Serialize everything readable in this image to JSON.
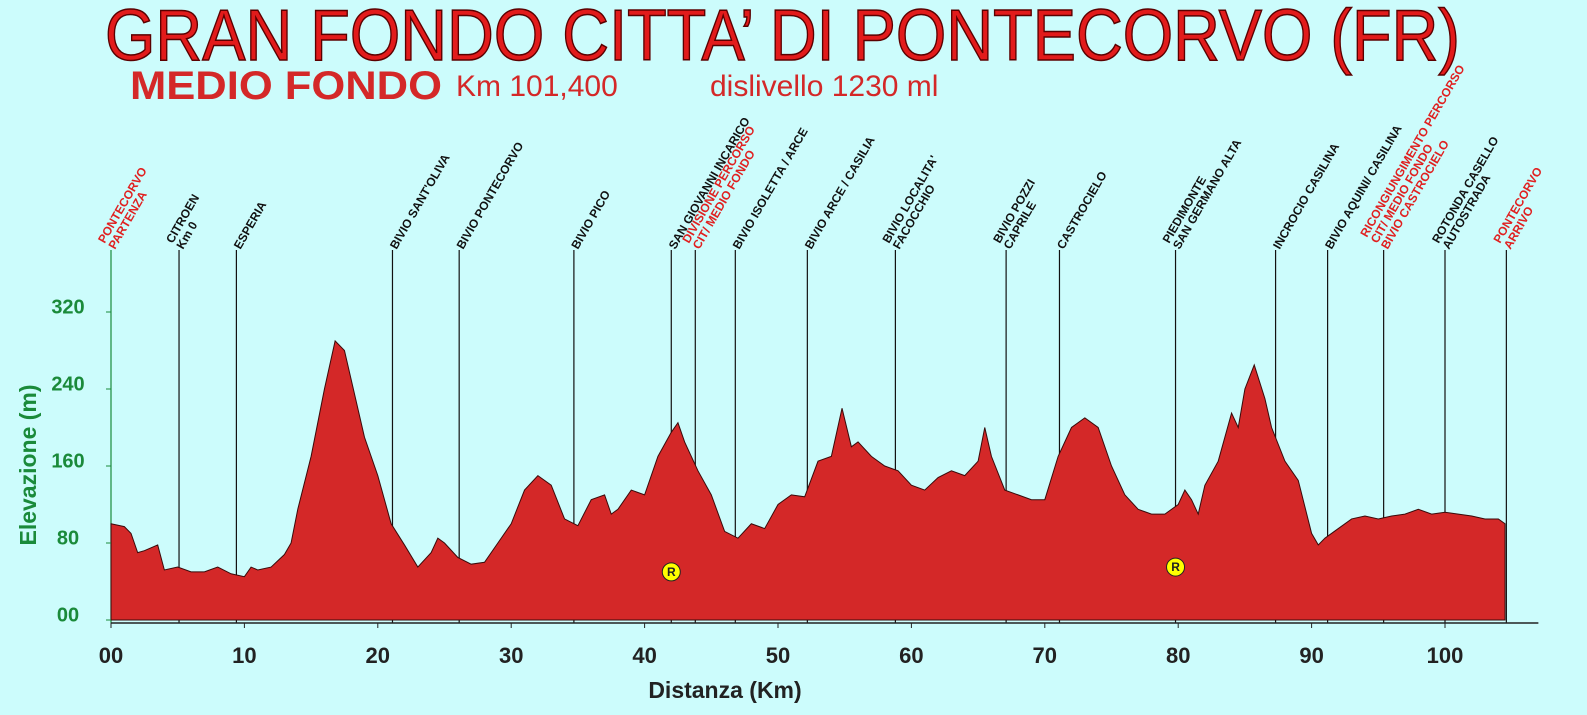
{
  "chart_data": {
    "type": "area",
    "title": "GRAN FONDO  CITTA’ DI PONTECORVO (FR)",
    "subtitle": "MEDIO FONDO",
    "distance_label": "Km 101,400",
    "climb_label": "dislivello 1230 ml",
    "x_label": "Distanza (Km)",
    "y_label": "Elevazione (m)",
    "color": "#d42828",
    "xlim": [
      0,
      107
    ],
    "ylim": [
      0,
      330
    ],
    "xticks": [
      {
        "value": 0,
        "label": "00"
      },
      10,
      20,
      30,
      40,
      50,
      60,
      70,
      80,
      90,
      100
    ],
    "yticks": [
      {
        "value": 0,
        "label": "00"
      },
      80,
      160,
      240,
      320
    ],
    "x": [
      0,
      1,
      1.5,
      2,
      2.5,
      3,
      3.5,
      4,
      5,
      6,
      7,
      8,
      9,
      10,
      10.5,
      11,
      12,
      13,
      13.5,
      14,
      15,
      16,
      16.8,
      17.5,
      18,
      19,
      20,
      21,
      22,
      23,
      24,
      24.5,
      25,
      26,
      27,
      28,
      29,
      30,
      31,
      32,
      33,
      34,
      35,
      36,
      37,
      37.5,
      38,
      39,
      40,
      41,
      42,
      42.5,
      43,
      44,
      45,
      46,
      47,
      48,
      49,
      50,
      51,
      52,
      53,
      54,
      54.8,
      55.5,
      56,
      57,
      58,
      59,
      60,
      61,
      62,
      63,
      64,
      65,
      65.5,
      66,
      67,
      68,
      69,
      70,
      71,
      72,
      73,
      74,
      75,
      76,
      77,
      78,
      79,
      80,
      80.5,
      81,
      81.5,
      82,
      83,
      84,
      84.5,
      85,
      85.7,
      86.5,
      87,
      88,
      89,
      90,
      90.5,
      91,
      92,
      93,
      94,
      95,
      96,
      97,
      98,
      99,
      100,
      101,
      102,
      103,
      104,
      104.5
    ],
    "values": [
      100,
      97,
      90,
      70,
      72,
      75,
      78,
      52,
      55,
      50,
      50,
      55,
      48,
      45,
      55,
      52,
      55,
      68,
      80,
      115,
      170,
      240,
      290,
      280,
      250,
      190,
      150,
      100,
      78,
      55,
      70,
      85,
      80,
      65,
      58,
      60,
      80,
      100,
      135,
      150,
      140,
      105,
      98,
      125,
      130,
      110,
      115,
      135,
      130,
      170,
      195,
      205,
      185,
      155,
      130,
      92,
      85,
      100,
      95,
      120,
      130,
      128,
      165,
      170,
      220,
      180,
      185,
      170,
      160,
      155,
      140,
      135,
      148,
      155,
      150,
      165,
      200,
      170,
      135,
      130,
      125,
      125,
      170,
      200,
      210,
      200,
      160,
      130,
      115,
      110,
      110,
      120,
      135,
      125,
      110,
      140,
      165,
      215,
      200,
      240,
      265,
      230,
      200,
      165,
      145,
      90,
      78,
      85,
      95,
      105,
      108,
      105,
      108,
      110,
      115,
      110,
      112,
      110,
      108,
      105,
      105,
      100
    ],
    "waypoints": [
      {
        "x": 0,
        "lines": [
          "PONTECORVO",
          "PARTENZA"
        ],
        "color": "#e02020"
      },
      {
        "x": 5.1,
        "lines": [
          "CITROEN",
          "Km 0"
        ],
        "color": "#111111"
      },
      {
        "x": 9.4,
        "lines": [
          "ESPERIA"
        ],
        "color": "#111111"
      },
      {
        "x": 21.1,
        "lines": [
          "BIVIO SANT'OLIVA"
        ],
        "color": "#111111"
      },
      {
        "x": 26.1,
        "lines": [
          "BIVIO  PONTECORVO"
        ],
        "color": "#111111"
      },
      {
        "x": 34.7,
        "lines": [
          "BIVIO PICO"
        ],
        "color": "#111111"
      },
      {
        "x": 42.0,
        "lines": [
          "SAN GIOVANNI INCARICO"
        ],
        "color": "#111111"
      },
      {
        "x": 43.8,
        "lines": [
          "DIVISIONE PERCORSO",
          "CIT/ MEDIO FONDO"
        ],
        "color": "#e02020"
      },
      {
        "x": 46.8,
        "lines": [
          "BIVIO  ISOLETTA / ARCE"
        ],
        "color": "#111111"
      },
      {
        "x": 52.2,
        "lines": [
          "BIVIO ARCE / CASILIA"
        ],
        "color": "#111111"
      },
      {
        "x": 58.8,
        "lines": [
          "BIVIO LOCALITA'",
          "FACOCCHIO"
        ],
        "color": "#111111"
      },
      {
        "x": 67.1,
        "lines": [
          "BIVIO POZZI",
          "CAPRILE"
        ],
        "color": "#111111"
      },
      {
        "x": 71.1,
        "lines": [
          "CASTROCIELO"
        ],
        "color": "#111111"
      },
      {
        "x": 79.8,
        "lines": [
          "PIEDIMONTE",
          "SAN GERMANO ALTA"
        ],
        "color": "#111111"
      },
      {
        "x": 87.3,
        "lines": [
          "INCROCIO CASILINA"
        ],
        "color": "#111111"
      },
      {
        "x": 91.2,
        "lines": [
          "BIVIO AQUINI/ CASILINA"
        ],
        "color": "#111111"
      },
      {
        "x": 95.4,
        "lines": [
          "RICONGIUNGIMENTO PERCORSO",
          "CIT/ MEDIO FONDO",
          "BIVIO CASTROCIELO"
        ],
        "color": "#e02020"
      },
      {
        "x": 100,
        "lines": [
          "ROTONDA CASELLO",
          "AUTOSTRADA"
        ],
        "color": "#111111"
      },
      {
        "x": 104.6,
        "lines": [
          "PONTECORVO",
          "ARRIVO"
        ],
        "color": "#e02020"
      }
    ],
    "refreshments": [
      {
        "x": 42,
        "y": 50,
        "label": "R"
      },
      {
        "x": 79.8,
        "y": 55,
        "label": "R"
      }
    ]
  }
}
